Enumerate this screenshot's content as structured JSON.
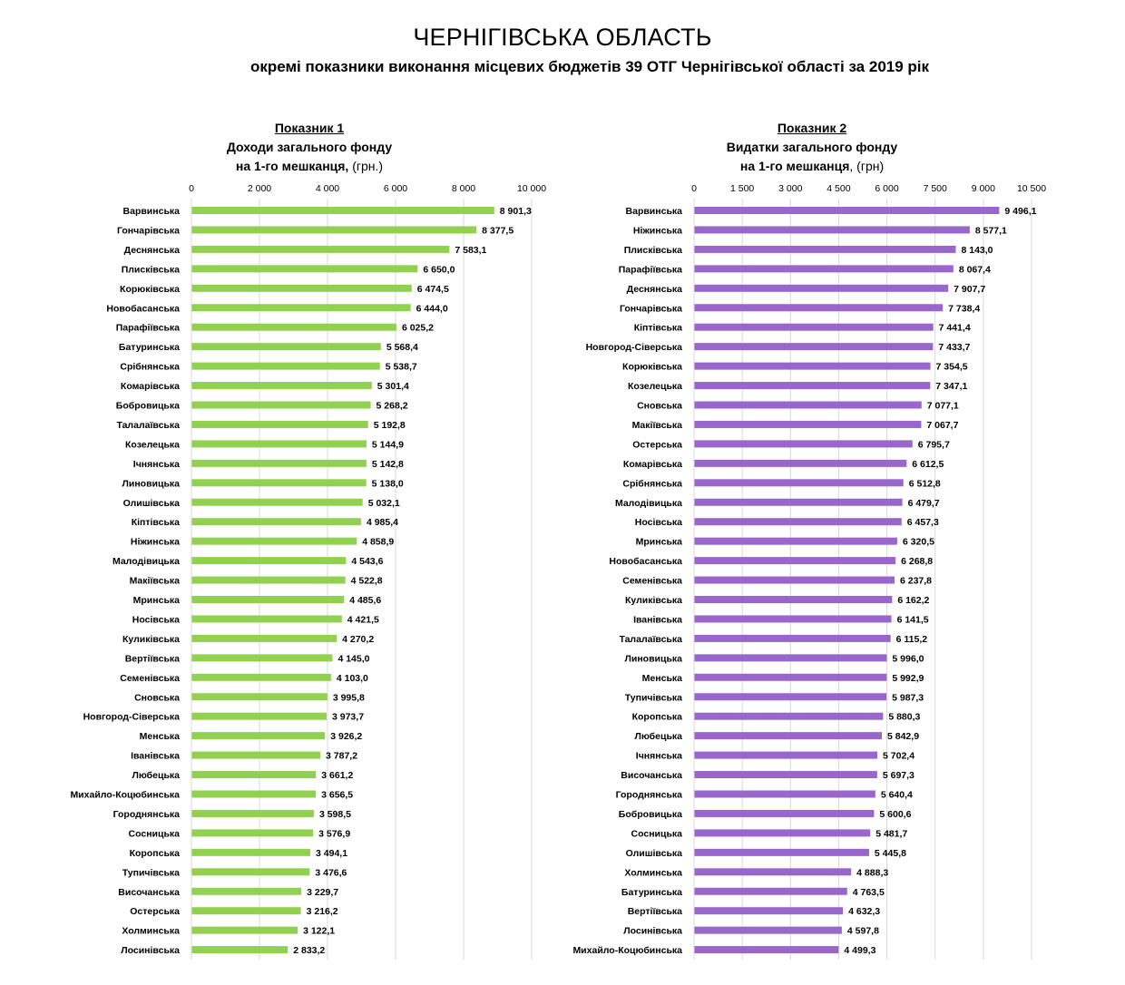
{
  "page": {
    "title": "ЧЕРНІГІВСЬКА ОБЛАСТЬ",
    "subtitle": "окремі показники виконання місцевих бюджетів 39 ОТГ Чернігівської області за 2019 рік"
  },
  "chart_data": [
    {
      "type": "bar",
      "orientation": "horizontal",
      "label": "Показник 1",
      "title_line1": "Доходи загального фонду",
      "title_line2": "на 1-го мешканця,",
      "unit": "(грн.)",
      "color": "#92d050",
      "xlim": [
        0,
        10000
      ],
      "ticks": [
        0,
        2000,
        4000,
        6000,
        8000,
        10000
      ],
      "tick_labels": [
        "0",
        "2 000",
        "4 000",
        "6 000",
        "8 000",
        "10 000"
      ],
      "categories": [
        "Варвинська",
        "Гончарівська",
        "Деснянська",
        "Плисківська",
        "Корюківська",
        "Новобасанська",
        "Парафіївська",
        "Батуринська",
        "Срібнянська",
        "Комарівська",
        "Бобровицька",
        "Талалаївська",
        "Козелецька",
        "Ічнянська",
        "Линовицька",
        "Олишівська",
        "Кіптівська",
        "Ніжинська",
        "Малодівицька",
        "Макіївська",
        "Мринська",
        "Носівська",
        "Куликівська",
        "Вертіївська",
        "Семенівська",
        "Сновська",
        "Новгород-Сіверська",
        "Менська",
        "Іванівська",
        "Любецька",
        "Михайло-Коцюбинська",
        "Городнянська",
        "Сосницька",
        "Коропська",
        "Тупичівська",
        "Височанська",
        "Остерська",
        "Холминська",
        "Лосинівська"
      ],
      "values": [
        8901.3,
        8377.5,
        7583.1,
        6650.0,
        6474.5,
        6444.0,
        6025.2,
        5568.4,
        5538.7,
        5301.4,
        5268.2,
        5192.8,
        5144.9,
        5142.8,
        5138.0,
        5032.1,
        4985.4,
        4858.9,
        4543.6,
        4522.8,
        4485.6,
        4421.5,
        4270.2,
        4145.0,
        4103.0,
        3995.8,
        3973.7,
        3926.2,
        3787.2,
        3661.2,
        3656.5,
        3598.5,
        3576.9,
        3494.1,
        3476.6,
        3229.7,
        3216.2,
        3122.1,
        2833.2
      ],
      "value_labels": [
        "8 901,3",
        "8 377,5",
        "7 583,1",
        "6 650,0",
        "6 474,5",
        "6 444,0",
        "6 025,2",
        "5 568,4",
        "5 538,7",
        "5 301,4",
        "5 268,2",
        "5 192,8",
        "5 144,9",
        "5 142,8",
        "5 138,0",
        "5 032,1",
        "4 985,4",
        "4 858,9",
        "4 543,6",
        "4 522,8",
        "4 485,6",
        "4 421,5",
        "4 270,2",
        "4 145,0",
        "4 103,0",
        "3 995,8",
        "3 973,7",
        "3 926,2",
        "3 787,2",
        "3 661,2",
        "3 656,5",
        "3 598,5",
        "3 576,9",
        "3 494,1",
        "3 476,6",
        "3 229,7",
        "3 216,2",
        "3 122,1",
        "2 833,2"
      ]
    },
    {
      "type": "bar",
      "orientation": "horizontal",
      "label": "Показник 2",
      "title_line1": "Видатки загального фонду",
      "title_line2": "на 1-го мешканця",
      "unit": ", (грн)",
      "color": "#9966cc",
      "xlim": [
        0,
        10500
      ],
      "ticks": [
        0,
        1500,
        3000,
        4500,
        6000,
        7500,
        9000,
        10500
      ],
      "tick_labels": [
        "0",
        "1 500",
        "3 000",
        "4 500",
        "6 000",
        "7 500",
        "9 000",
        "10 500"
      ],
      "categories": [
        "Варвинська",
        "Ніжинська",
        "Плисківська",
        "Парафіївська",
        "Деснянська",
        "Гончарівська",
        "Кіптівська",
        "Новгород-Сіверська",
        "Корюківська",
        "Козелецька",
        "Сновська",
        "Макіївська",
        "Остерська",
        "Комарівська",
        "Срібнянська",
        "Малодівицька",
        "Носівська",
        "Мринська",
        "Новобасанська",
        "Семенівська",
        "Куликівська",
        "Іванівська",
        "Талалаївська",
        "Линовицька",
        "Менська",
        "Тупичівська",
        "Коропська",
        "Любецька",
        "Ічнянська",
        "Височанська",
        "Городнянська",
        "Бобровицька",
        "Сосницька",
        "Олишівська",
        "Холминська",
        "Батуринська",
        "Вертіївська",
        "Лосинівська",
        "Михайло-Коцюбинська"
      ],
      "values": [
        9496.1,
        8577.1,
        8143.0,
        8067.4,
        7907.7,
        7738.4,
        7441.4,
        7433.7,
        7354.5,
        7347.1,
        7077.1,
        7067.7,
        6795.7,
        6612.5,
        6512.8,
        6479.7,
        6457.3,
        6320.5,
        6268.8,
        6237.8,
        6162.2,
        6141.5,
        6115.2,
        5996.0,
        5992.9,
        5987.3,
        5880.3,
        5842.9,
        5702.4,
        5697.3,
        5640.4,
        5600.6,
        5481.7,
        5445.8,
        4888.3,
        4763.5,
        4632.3,
        4597.8,
        4499.3
      ],
      "value_labels": [
        "9 496,1",
        "8 577,1",
        "8 143,0",
        "8 067,4",
        "7 907,7",
        "7 738,4",
        "7 441,4",
        "7 433,7",
        "7 354,5",
        "7 347,1",
        "7 077,1",
        "7 067,7",
        "6 795,7",
        "6 612,5",
        "6 512,8",
        "6 479,7",
        "6 457,3",
        "6 320,5",
        "6 268,8",
        "6 237,8",
        "6 162,2",
        "6 141,5",
        "6 115,2",
        "5 996,0",
        "5 992,9",
        "5 987,3",
        "5 880,3",
        "5 842,9",
        "5 702,4",
        "5 697,3",
        "5 640,4",
        "5 600,6",
        "5 481,7",
        "5 445,8",
        "4 888,3",
        "4 763,5",
        "4 632,3",
        "4 597,8",
        "4 499,3"
      ]
    }
  ]
}
